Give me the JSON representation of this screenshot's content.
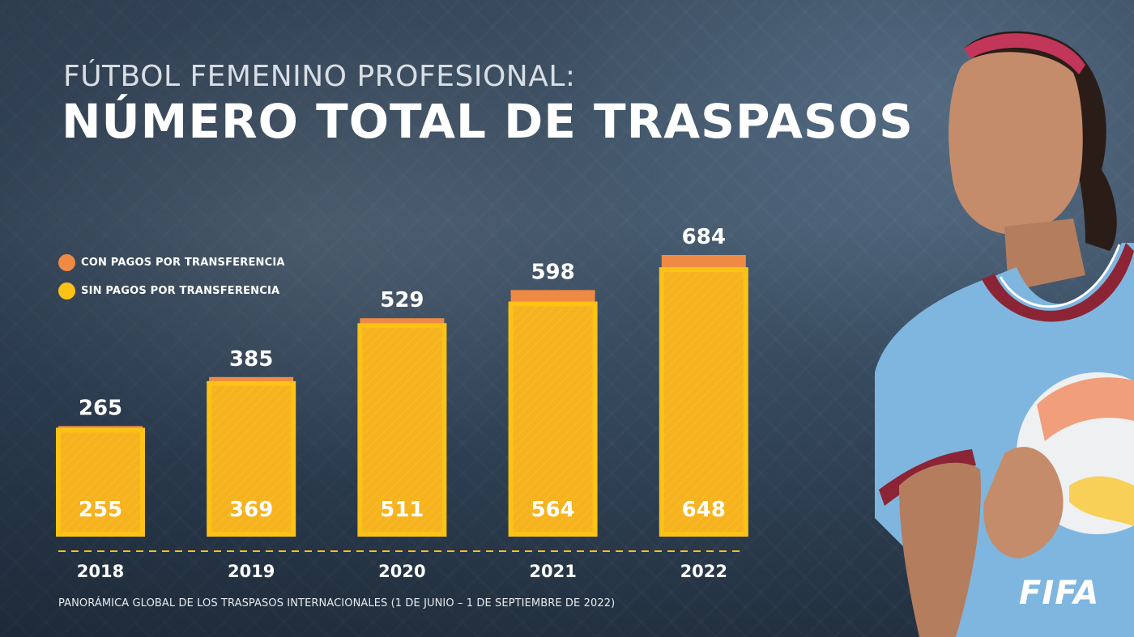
{
  "header": {
    "subtitle": "FÚTBOL FEMENINO PROFESIONAL:",
    "title": "NÚMERO TOTAL DE TRASPASOS"
  },
  "legend": {
    "items": [
      {
        "label": "CON PAGOS POR TRANSFERENCIA",
        "color": "#ef8a44"
      },
      {
        "label": "SIN PAGOS POR TRANSFERENCIA",
        "color": "#fcc216"
      }
    ]
  },
  "chart_data": {
    "type": "bar",
    "stacked": true,
    "categories": [
      "2018",
      "2019",
      "2020",
      "2021",
      "2022"
    ],
    "series": [
      {
        "name": "SIN PAGOS POR TRANSFERENCIA",
        "values": [
          255,
          369,
          511,
          564,
          648
        ],
        "color": "#fcc216"
      },
      {
        "name": "CON PAGOS POR TRANSFERENCIA",
        "values": [
          10,
          16,
          18,
          34,
          36
        ],
        "color": "#ef8a44"
      }
    ],
    "totals": [
      265,
      385,
      529,
      598,
      684
    ],
    "title": "NÚMERO TOTAL DE TRASPASOS",
    "xlabel": "",
    "ylabel": "",
    "ylim": [
      0,
      700
    ],
    "grid": false,
    "legend_position": "top-left"
  },
  "footnote": "PANORÁMICA GLOBAL DE LOS TRASPASOS INTERNACIONALES (1 DE JUNIO – 1 DE SEPTIEMBRE DE 2022)",
  "brand": {
    "logo_text": "FIFA"
  },
  "colors": {
    "paid": "#ef8a44",
    "unpaid": "#fcc216",
    "unpaid_fill": "#f6b31d",
    "axis_dash": "#fcc216",
    "jersey": "#7fb6e0",
    "collar": "#8b2535"
  }
}
